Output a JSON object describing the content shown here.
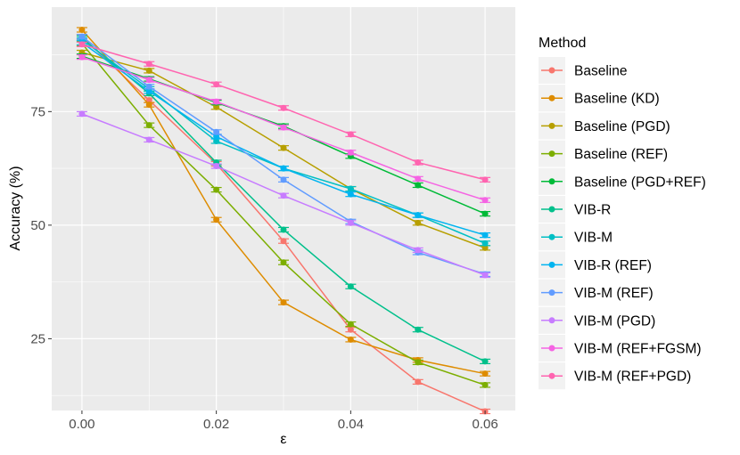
{
  "chart_data": {
    "type": "line",
    "title": "",
    "xlabel": "ε",
    "ylabel": "Accuracy (%)",
    "x": [
      0.0,
      0.01,
      0.02,
      0.03,
      0.04,
      0.05,
      0.06
    ],
    "xlim": [
      -0.0045,
      0.0645
    ],
    "ylim": [
      9.2,
      98.0
    ],
    "xticks": [
      0.0,
      0.02,
      0.04,
      0.06
    ],
    "xtick_labels": [
      "0.00",
      "0.02",
      "0.04",
      "0.06"
    ],
    "yticks": [
      25,
      50,
      75
    ],
    "ytick_labels": [
      "25",
      "50",
      "75"
    ],
    "grid": true,
    "legend": {
      "title": "Method",
      "position": "right"
    },
    "series": [
      {
        "name": "Baseline",
        "color": "#F8766D",
        "values": [
          91.5,
          77.5,
          63.5,
          46.5,
          27.0,
          15.5,
          9.0
        ]
      },
      {
        "name": "Baseline (KD)",
        "color": "#DE8C00",
        "values": [
          93.0,
          76.5,
          51.2,
          33.0,
          24.8,
          20.3,
          17.3
        ]
      },
      {
        "name": "Baseline (PGD)",
        "color": "#B79F00",
        "values": [
          88.0,
          84.0,
          76.0,
          67.0,
          58.0,
          50.5,
          45.0
        ]
      },
      {
        "name": "Baseline (REF)",
        "color": "#7CAE00",
        "values": [
          90.0,
          72.0,
          57.8,
          41.8,
          28.2,
          19.8,
          14.8
        ]
      },
      {
        "name": "Baseline (PGD+REF)",
        "color": "#00BA38",
        "values": [
          87.2,
          82.2,
          77.0,
          71.8,
          65.2,
          58.8,
          52.5
        ]
      },
      {
        "name": "VIB-R",
        "color": "#00C08B",
        "values": [
          91.2,
          79.0,
          63.8,
          49.0,
          36.5,
          27.0,
          20.0
        ]
      },
      {
        "name": "VIB-M",
        "color": "#00BFC4",
        "values": [
          90.8,
          80.0,
          68.5,
          62.5,
          58.0,
          52.2,
          46.0
        ]
      },
      {
        "name": "VIB-R (REF)",
        "color": "#00B4F0",
        "values": [
          90.2,
          79.5,
          69.5,
          62.5,
          56.8,
          52.2,
          47.8
        ]
      },
      {
        "name": "VIB-M (REF)",
        "color": "#619CFF",
        "values": [
          91.5,
          80.5,
          70.5,
          60.0,
          50.8,
          44.0,
          39.2
        ]
      },
      {
        "name": "VIB-M (PGD)",
        "color": "#C77CFF",
        "values": [
          74.5,
          68.8,
          63.0,
          56.5,
          50.5,
          44.5,
          39.0
        ]
      },
      {
        "name": "VIB-M (REF+FGSM)",
        "color": "#F564E3",
        "values": [
          87.0,
          82.0,
          77.2,
          71.5,
          66.0,
          60.2,
          55.5
        ]
      },
      {
        "name": "VIB-M (REF+PGD)",
        "color": "#FF64B0",
        "values": [
          89.8,
          85.5,
          81.0,
          75.8,
          70.0,
          63.8,
          60.0
        ]
      }
    ]
  }
}
